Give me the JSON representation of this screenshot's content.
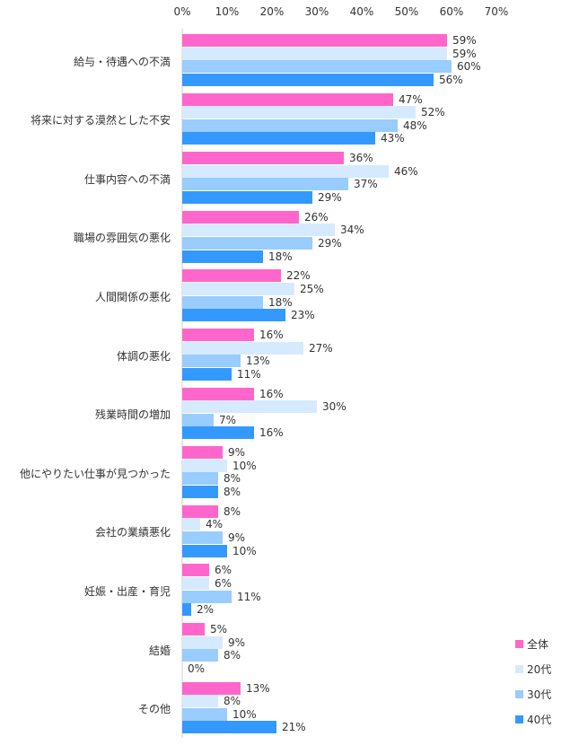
{
  "chart_data": {
    "type": "bar",
    "orientation": "horizontal",
    "title": "",
    "xlabel": "",
    "ylabel": "",
    "xlim": [
      0,
      70
    ],
    "x_ticks": [
      "0%",
      "10%",
      "20%",
      "30%",
      "40%",
      "50%",
      "60%",
      "70%"
    ],
    "grid": false,
    "legend_position": "bottom-right",
    "categories": [
      "給与・待遇への不満",
      "将来に対する漠然とした不安",
      "仕事内容への不満",
      "職場の雰囲気の悪化",
      "人間関係の悪化",
      "体調の悪化",
      "残業時間の増加",
      "他にやりたい仕事が見つかった",
      "会社の業績悪化",
      "妊娠・出産・育児",
      "結婚",
      "その他"
    ],
    "series": [
      {
        "name": "全体",
        "color": "#ff66cc",
        "values": [
          59,
          47,
          36,
          26,
          22,
          16,
          16,
          9,
          8,
          6,
          5,
          13
        ]
      },
      {
        "name": "20代",
        "color": "#d6eaff",
        "values": [
          59,
          52,
          46,
          34,
          25,
          27,
          30,
          10,
          4,
          6,
          9,
          8
        ]
      },
      {
        "name": "30代",
        "color": "#99ccff",
        "values": [
          60,
          48,
          37,
          29,
          18,
          13,
          7,
          8,
          9,
          11,
          8,
          10
        ]
      },
      {
        "name": "40代",
        "color": "#3399ff",
        "values": [
          56,
          43,
          29,
          18,
          23,
          11,
          16,
          8,
          10,
          2,
          0,
          21
        ]
      }
    ],
    "value_suffix": "%"
  }
}
